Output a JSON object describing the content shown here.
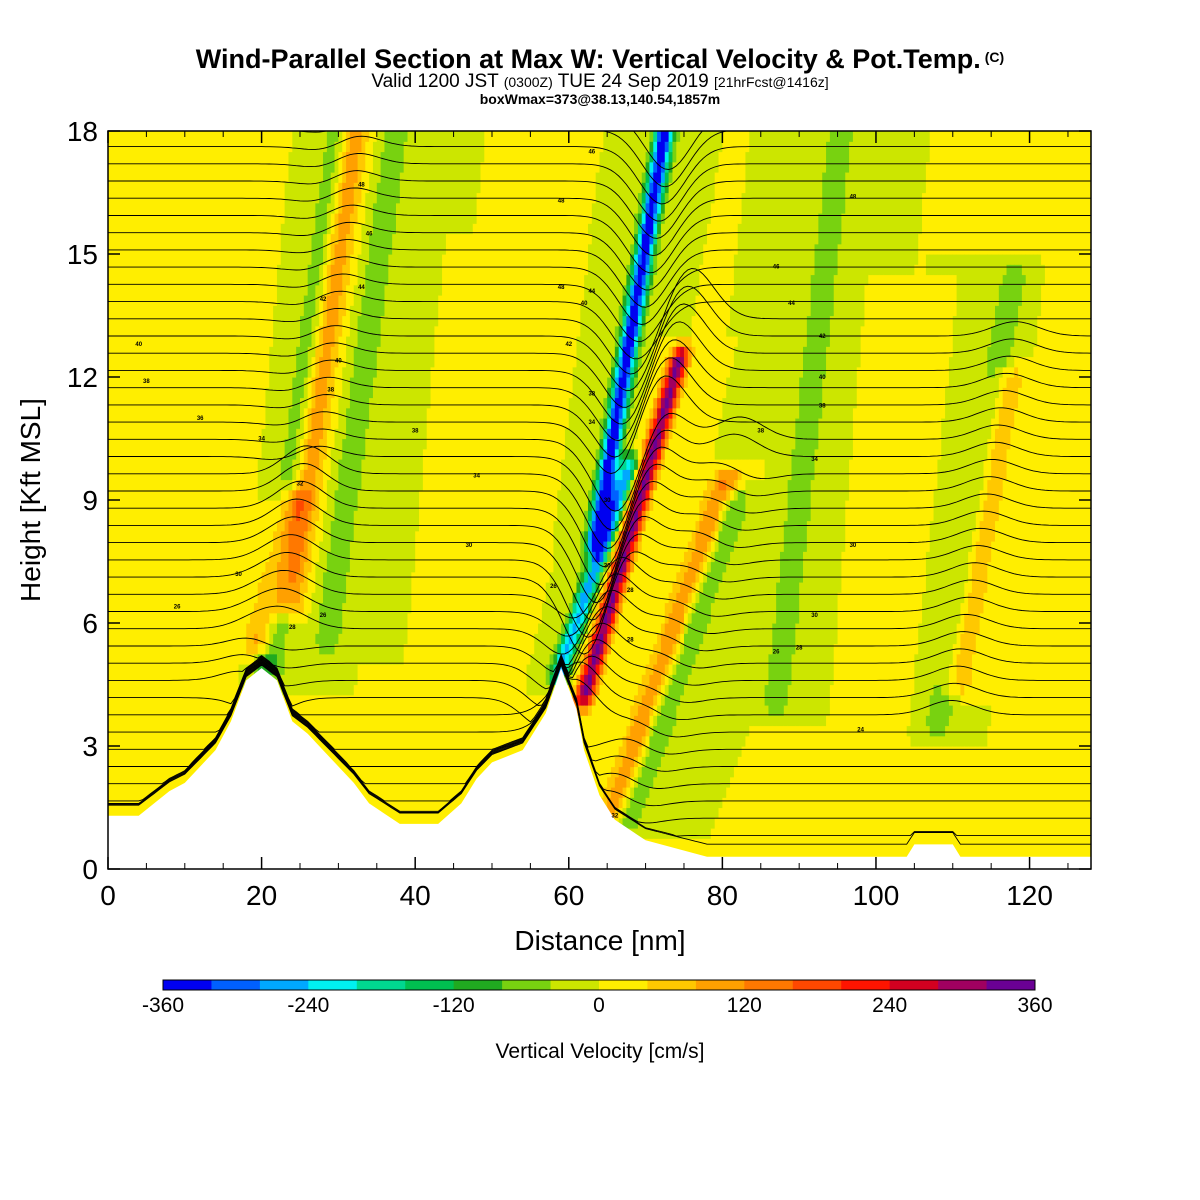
{
  "title": {
    "main": "Wind-Parallel Section at Max W: Vertical Velocity & Pot.Temp.",
    "copyright": "(C)",
    "valid_a": "Valid 1200 JST",
    "valid_b": "(0300Z)",
    "valid_c": "TUE 24 Sep 2019",
    "valid_d": "[21hrFcst@1416z]",
    "boxw": "boxWmax=373@38.13,140.54,1857m"
  },
  "chart_data": {
    "type": "heatmap",
    "xlabel": "Distance [nm]",
    "ylabel": "Height [Kft MSL]",
    "xlim": [
      0,
      128
    ],
    "ylim": [
      0,
      18
    ],
    "xticks": [
      0,
      20,
      40,
      60,
      80,
      100,
      120
    ],
    "yticks": [
      0,
      3,
      6,
      9,
      12,
      15,
      18
    ],
    "colorbar": {
      "label": "Vertical Velocity [cm/s]",
      "ticks": [
        -360,
        -240,
        -120,
        0,
        120,
        240,
        360
      ],
      "bounds": [
        -360,
        360
      ],
      "colors": [
        "#0000f0",
        "#0060ff",
        "#00a8ff",
        "#00f0f0",
        "#00d890",
        "#00c050",
        "#20aa20",
        "#78d210",
        "#cce600",
        "#ffee00",
        "#ffc800",
        "#ffa000",
        "#ff7800",
        "#ff4800",
        "#ff1400",
        "#d20020",
        "#a00060",
        "#6a0094"
      ]
    },
    "terrain": [
      [
        0,
        1.3
      ],
      [
        4,
        1.3
      ],
      [
        6,
        1.6
      ],
      [
        8,
        1.9
      ],
      [
        10,
        2.1
      ],
      [
        12,
        2.5
      ],
      [
        14,
        2.9
      ],
      [
        16,
        3.6
      ],
      [
        18,
        4.6
      ],
      [
        20,
        4.9
      ],
      [
        22,
        4.6
      ],
      [
        24,
        3.6
      ],
      [
        26,
        3.3
      ],
      [
        28,
        2.9
      ],
      [
        30,
        2.5
      ],
      [
        32,
        2.1
      ],
      [
        34,
        1.6
      ],
      [
        38,
        1.1
      ],
      [
        43,
        1.1
      ],
      [
        46,
        1.6
      ],
      [
        48,
        2.2
      ],
      [
        50,
        2.6
      ],
      [
        54,
        2.9
      ],
      [
        57,
        3.8
      ],
      [
        59,
        4.9
      ],
      [
        61,
        3.9
      ],
      [
        62,
        2.9
      ],
      [
        64,
        1.8
      ],
      [
        66,
        1.2
      ],
      [
        70,
        0.7
      ],
      [
        74,
        0.5
      ],
      [
        78,
        0.3
      ],
      [
        104,
        0.3
      ],
      [
        105,
        0.6
      ],
      [
        110,
        0.6
      ],
      [
        111,
        0.3
      ],
      [
        128,
        0.3
      ]
    ],
    "w_features": [
      {
        "x": 62.0,
        "z0": 4.2,
        "z1": 12.5,
        "slope": 0.25,
        "w": 330
      },
      {
        "x": 63.5,
        "z0": 8.0,
        "z1": 18.0,
        "slope": 0.15,
        "w": -360
      },
      {
        "x": 58.8,
        "z0": 4.8,
        "z1": 9.8,
        "slope": 0.3,
        "w": -260
      },
      {
        "x": 65.6,
        "z0": 1.2,
        "z1": 9.5,
        "slope": 0.3,
        "w": 140
      },
      {
        "x": 67.5,
        "z0": 1.2,
        "z1": 9.0,
        "slope": 0.3,
        "w": -110
      },
      {
        "x": 20.8,
        "z0": 4.8,
        "z1": 18.0,
        "slope": 0.12,
        "w": -110
      },
      {
        "x": 23.5,
        "z0": 6.5,
        "z1": 18.0,
        "slope": 0.12,
        "w": 150
      },
      {
        "x": 19.8,
        "z0": 5.5,
        "z1": 9.0,
        "slope": 0.2,
        "w": 130
      },
      {
        "x": 28.5,
        "z0": 5.5,
        "z1": 18.0,
        "slope": 0.12,
        "w": -70
      },
      {
        "x": 87.0,
        "z0": 4.0,
        "z1": 18.0,
        "slope": 0.1,
        "w": -70
      },
      {
        "x": 108.0,
        "z0": 3.5,
        "z1": 14.5,
        "slope": 0.15,
        "w": -70
      },
      {
        "x": 110.5,
        "z0": 4.5,
        "z1": 12.0,
        "slope": 0.15,
        "w": 90
      },
      {
        "x": 13.0,
        "z0": 1.5,
        "z1": 18.0,
        "slope": 0.05,
        "w": 35
      },
      {
        "x": 48.0,
        "z0": 2.0,
        "z1": 15.0,
        "slope": 0.05,
        "w": 35
      },
      {
        "x": 100.0,
        "z0": 1.0,
        "z1": 14.0,
        "slope": 0.05,
        "w": 40
      },
      {
        "x": 121.0,
        "z0": 2.0,
        "z1": 18.0,
        "slope": 0.06,
        "w": 40
      }
    ],
    "theta_labels": [
      {
        "x": 12,
        "z": 11.0,
        "text": "36"
      },
      {
        "x": 5,
        "z": 11.9,
        "text": "38"
      },
      {
        "x": 4,
        "z": 12.8,
        "text": "40"
      },
      {
        "x": 9,
        "z": 6.4,
        "text": "26"
      },
      {
        "x": 17,
        "z": 7.2,
        "text": "30"
      },
      {
        "x": 20,
        "z": 10.5,
        "text": "34"
      },
      {
        "x": 24,
        "z": 5.9,
        "text": "28"
      },
      {
        "x": 28,
        "z": 6.2,
        "text": "26"
      },
      {
        "x": 25,
        "z": 9.4,
        "text": "32"
      },
      {
        "x": 29,
        "z": 11.7,
        "text": "38"
      },
      {
        "x": 30,
        "z": 12.4,
        "text": "40"
      },
      {
        "x": 28,
        "z": 13.9,
        "text": "42"
      },
      {
        "x": 33,
        "z": 14.2,
        "text": "44"
      },
      {
        "x": 34,
        "z": 15.5,
        "text": "46"
      },
      {
        "x": 33,
        "z": 16.7,
        "text": "48"
      },
      {
        "x": 40,
        "z": 10.7,
        "text": "38"
      },
      {
        "x": 48,
        "z": 9.6,
        "text": "34"
      },
      {
        "x": 47,
        "z": 7.9,
        "text": "30"
      },
      {
        "x": 58,
        "z": 6.9,
        "text": "26"
      },
      {
        "x": 60,
        "z": 12.8,
        "text": "42"
      },
      {
        "x": 59,
        "z": 14.2,
        "text": "48"
      },
      {
        "x": 59,
        "z": 16.3,
        "text": "48"
      },
      {
        "x": 63,
        "z": 17.5,
        "text": "46"
      },
      {
        "x": 63,
        "z": 14.1,
        "text": "44"
      },
      {
        "x": 62,
        "z": 13.8,
        "text": "40"
      },
      {
        "x": 63,
        "z": 11.6,
        "text": "38"
      },
      {
        "x": 63,
        "z": 10.9,
        "text": "34"
      },
      {
        "x": 65,
        "z": 9.0,
        "text": "30"
      },
      {
        "x": 65,
        "z": 7.4,
        "text": "30"
      },
      {
        "x": 68,
        "z": 6.8,
        "text": "28"
      },
      {
        "x": 68,
        "z": 5.6,
        "text": "28"
      },
      {
        "x": 66,
        "z": 1.3,
        "text": "32"
      },
      {
        "x": 85,
        "z": 10.7,
        "text": "38"
      },
      {
        "x": 87,
        "z": 14.7,
        "text": "46"
      },
      {
        "x": 89,
        "z": 13.8,
        "text": "44"
      },
      {
        "x": 93,
        "z": 13.0,
        "text": "42"
      },
      {
        "x": 93,
        "z": 12.0,
        "text": "40"
      },
      {
        "x": 93,
        "z": 11.3,
        "text": "38"
      },
      {
        "x": 92,
        "z": 10.0,
        "text": "34"
      },
      {
        "x": 97,
        "z": 16.4,
        "text": "48"
      },
      {
        "x": 97,
        "z": 7.9,
        "text": "30"
      },
      {
        "x": 92,
        "z": 6.2,
        "text": "30"
      },
      {
        "x": 90,
        "z": 5.4,
        "text": "28"
      },
      {
        "x": 87,
        "z": 5.3,
        "text": "26"
      },
      {
        "x": 98,
        "z": 3.4,
        "text": "24"
      }
    ]
  }
}
